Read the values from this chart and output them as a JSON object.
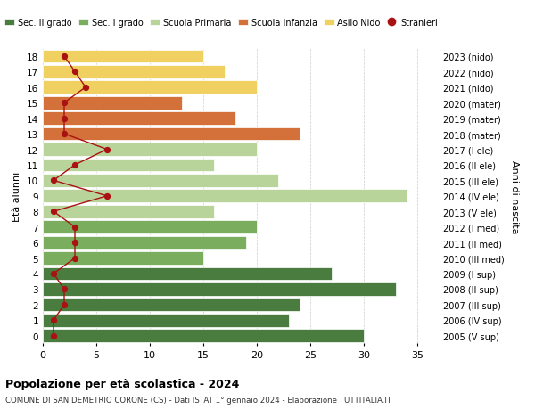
{
  "ages": [
    18,
    17,
    16,
    15,
    14,
    13,
    12,
    11,
    10,
    9,
    8,
    7,
    6,
    5,
    4,
    3,
    2,
    1,
    0
  ],
  "years": [
    "2005 (V sup)",
    "2006 (IV sup)",
    "2007 (III sup)",
    "2008 (II sup)",
    "2009 (I sup)",
    "2010 (III med)",
    "2011 (II med)",
    "2012 (I med)",
    "2013 (V ele)",
    "2014 (IV ele)",
    "2015 (III ele)",
    "2016 (II ele)",
    "2017 (I ele)",
    "2018 (mater)",
    "2019 (mater)",
    "2020 (mater)",
    "2021 (nido)",
    "2022 (nido)",
    "2023 (nido)"
  ],
  "bar_values": [
    30,
    23,
    24,
    33,
    27,
    15,
    19,
    20,
    16,
    34,
    22,
    16,
    20,
    24,
    18,
    13,
    20,
    17,
    15
  ],
  "bar_colors": [
    "#4a7c3f",
    "#4a7c3f",
    "#4a7c3f",
    "#4a7c3f",
    "#4a7c3f",
    "#7aad5e",
    "#7aad5e",
    "#7aad5e",
    "#b8d49a",
    "#b8d49a",
    "#b8d49a",
    "#b8d49a",
    "#b8d49a",
    "#d4703a",
    "#d4703a",
    "#d4703a",
    "#f0d060",
    "#f0d060",
    "#f0d060"
  ],
  "stranieri_values": [
    1,
    1,
    2,
    2,
    1,
    3,
    3,
    3,
    1,
    6,
    1,
    3,
    6,
    2,
    2,
    2,
    4,
    3,
    2
  ],
  "legend_labels": [
    "Sec. II grado",
    "Sec. I grado",
    "Scuola Primaria",
    "Scuola Infanzia",
    "Asilo Nido",
    "Stranieri"
  ],
  "legend_colors": [
    "#4a7c3f",
    "#7aad5e",
    "#b8d49a",
    "#d4703a",
    "#f0d060",
    "#aa1111"
  ],
  "ylabel": "Età alunni",
  "ylabel_right": "Anni di nascita",
  "title": "Popolazione per età scolastica - 2024",
  "subtitle": "COMUNE DI SAN DEMETRIO CORONE (CS) - Dati ISTAT 1° gennaio 2024 - Elaborazione TUTTITALIA.IT",
  "xlim": [
    0,
    37
  ],
  "bar_background": "#ffffff",
  "grid_color": "#cccccc"
}
